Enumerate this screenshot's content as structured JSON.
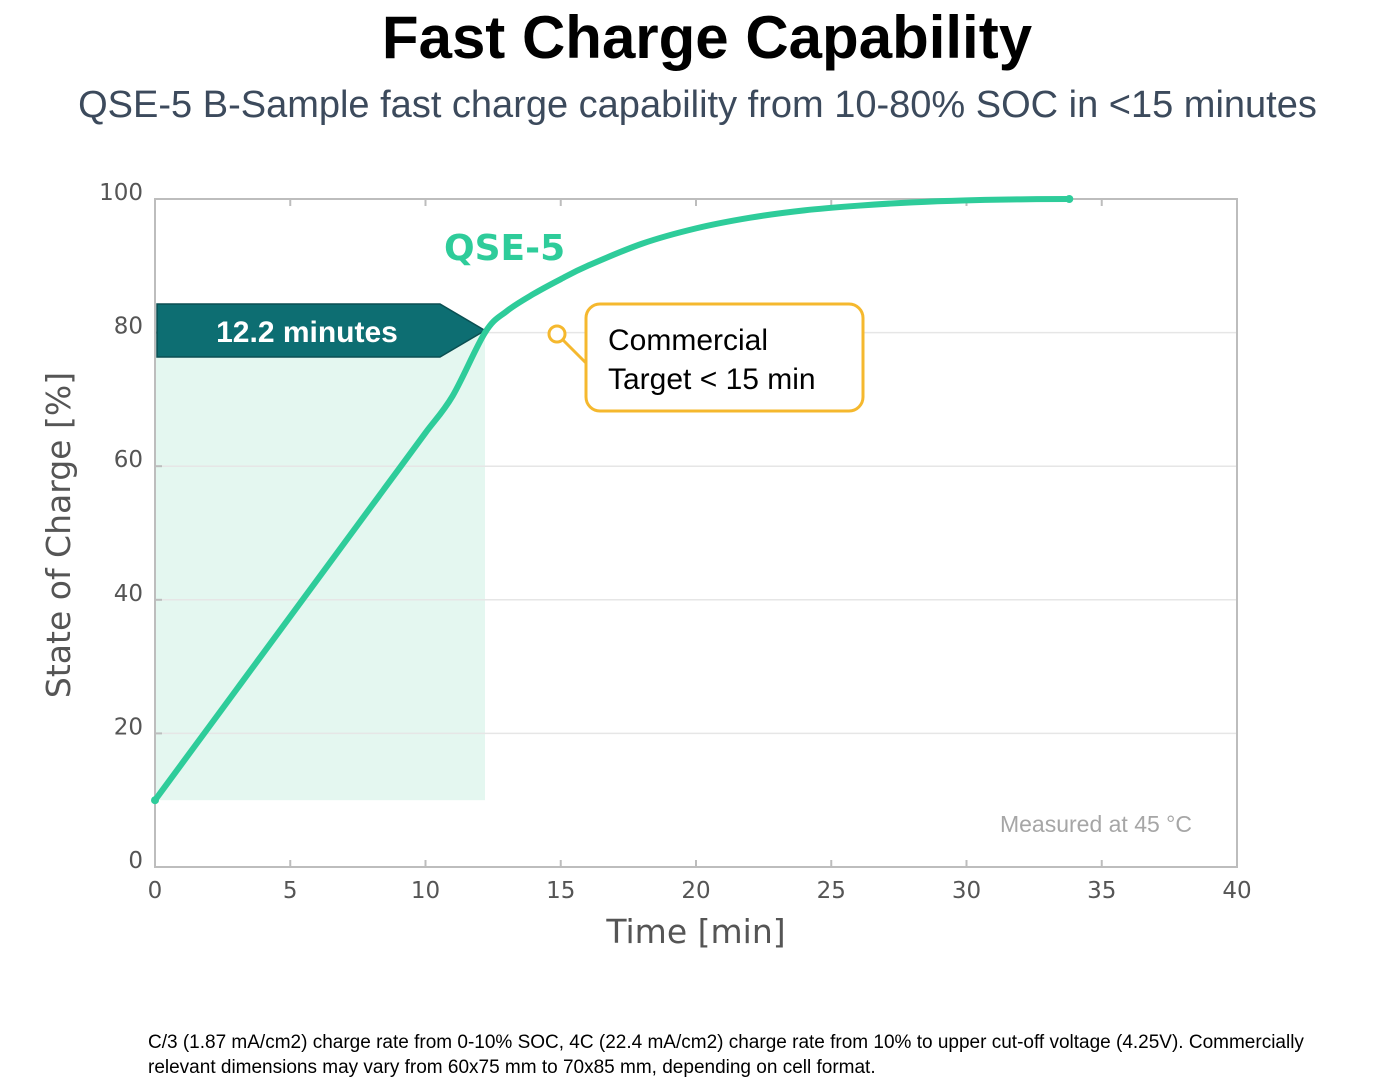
{
  "title": "Fast Charge Capability",
  "subtitle": "QSE-5 B-Sample fast charge capability from 10-80% SOC in <15 minutes",
  "footnote": "C/3 (1.87 mA/cm2) charge rate from 0-10% SOC, 4C (22.4 mA/cm2) charge rate from 10% to upper cut-off voltage (4.25V). Commercially relevant dimensions may vary from 60x75 mm to 70x85 mm, depending on cell format.",
  "chart_data": {
    "type": "line",
    "title": "",
    "xlabel": "Time [min]",
    "ylabel": "State of Charge [%]",
    "xlim": [
      0,
      40
    ],
    "ylim": [
      0,
      100
    ],
    "xticks": [
      "0",
      "5",
      "10",
      "15",
      "20",
      "25",
      "30",
      "35",
      "40"
    ],
    "yticks": [
      "0",
      "20",
      "40",
      "60",
      "80",
      "100"
    ],
    "grid": "horizontal",
    "series": [
      {
        "name": "QSE-5",
        "color": "#2ecc9a",
        "x": [
          0,
          1,
          2,
          3,
          4,
          5,
          6,
          7,
          8,
          9,
          10,
          11,
          12.2,
          13,
          14,
          15,
          16,
          18,
          20,
          22,
          24,
          26,
          28,
          30,
          32,
          33.8
        ],
        "y": [
          10,
          15.5,
          21,
          26.5,
          32,
          37.5,
          43,
          48.5,
          54,
          59.5,
          65,
          70.5,
          80,
          83.2,
          85.8,
          88,
          90,
          93.3,
          95.6,
          97.2,
          98.3,
          99,
          99.5,
          99.8,
          99.95,
          100
        ]
      }
    ],
    "annotations": {
      "highlight_label": "12.2 minutes",
      "highlight_x": [
        0,
        12.2
      ],
      "highlight_y": [
        10,
        80
      ],
      "target_label_line1": "Commercial",
      "target_label_line2": "Target < 15 min",
      "measured_note": "Measured at 45 °C"
    },
    "colors": {
      "line": "#2ecc9a",
      "fill": "#e4f7f0",
      "arrow": "#0d6e72",
      "target_border": "#f5b82e",
      "series_label": "#2ecc9a"
    }
  }
}
